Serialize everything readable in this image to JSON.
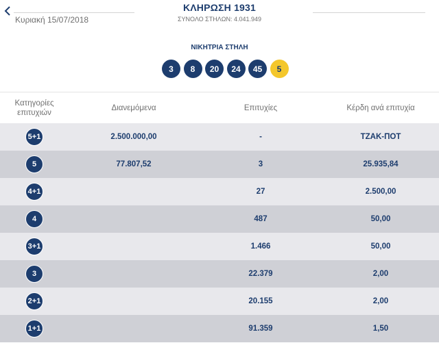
{
  "header": {
    "date": "Κυριακή 15/07/2018",
    "title": "ΚΛΗΡΩΣΗ 1931",
    "subtitle": "ΣΥΝΟΛΟ ΣΤΗΛΩΝ: 4.041.949"
  },
  "winning": {
    "label": "ΝΙΚΗΤΡΙΑ ΣΤΗΛΗ",
    "numbers": [
      "3",
      "8",
      "20",
      "24",
      "45"
    ],
    "joker": "5"
  },
  "table": {
    "headers": {
      "category": "Κατηγορίες επιτυχιών",
      "distributed": "Διανεμόμενα",
      "winners": "Επιτυχίες",
      "prize": "Κέρδη ανά επιτυχία"
    },
    "rows": [
      {
        "category": "5+1",
        "distributed": "2.500.000,00",
        "winners": "-",
        "prize": "ΤΖΑΚ-ΠΟΤ"
      },
      {
        "category": "5",
        "distributed": "77.807,52",
        "winners": "3",
        "prize": "25.935,84"
      },
      {
        "category": "4+1",
        "distributed": "",
        "winners": "27",
        "prize": "2.500,00"
      },
      {
        "category": "4",
        "distributed": "",
        "winners": "487",
        "prize": "50,00"
      },
      {
        "category": "3+1",
        "distributed": "",
        "winners": "1.466",
        "prize": "50,00"
      },
      {
        "category": "3",
        "distributed": "",
        "winners": "22.379",
        "prize": "2,00"
      },
      {
        "category": "2+1",
        "distributed": "",
        "winners": "20.155",
        "prize": "2,00"
      },
      {
        "category": "1+1",
        "distributed": "",
        "winners": "91.359",
        "prize": "1,50"
      }
    ]
  },
  "colors": {
    "navy": "#1d3d6e",
    "joker_yellow": "#f4c72b",
    "row_light": "#e8e8ec",
    "row_dark": "#cfd0d6"
  },
  "icons": {
    "back": "chevron-left-icon"
  }
}
